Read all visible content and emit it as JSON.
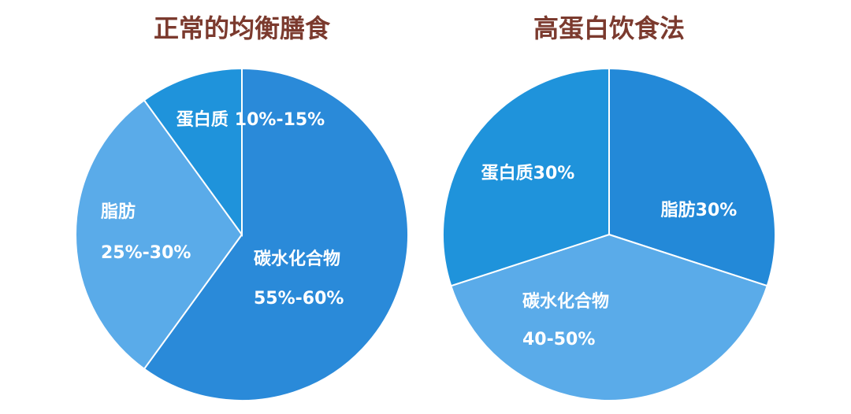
{
  "chart_data": [
    {
      "type": "pie",
      "title": "正常的均衡膳食",
      "categories": [
        "碳水化合物",
        "脂肪",
        "蛋白质"
      ],
      "values": [
        60,
        30,
        10
      ],
      "value_labels": [
        "55%-60%",
        "25%-30%",
        "10%-15%"
      ],
      "colors": [
        "#2a8ad9",
        "#5aabe9",
        "#1f93db"
      ]
    },
    {
      "type": "pie",
      "title": "高蛋白饮食法",
      "categories": [
        "脂肪",
        "碳水化合物",
        "蛋白质"
      ],
      "values": [
        30,
        40,
        30
      ],
      "value_labels": [
        "30%",
        "40-50%",
        "30%"
      ],
      "colors": [
        "#2389d8",
        "#5aabe9",
        "#1f93db"
      ]
    }
  ]
}
